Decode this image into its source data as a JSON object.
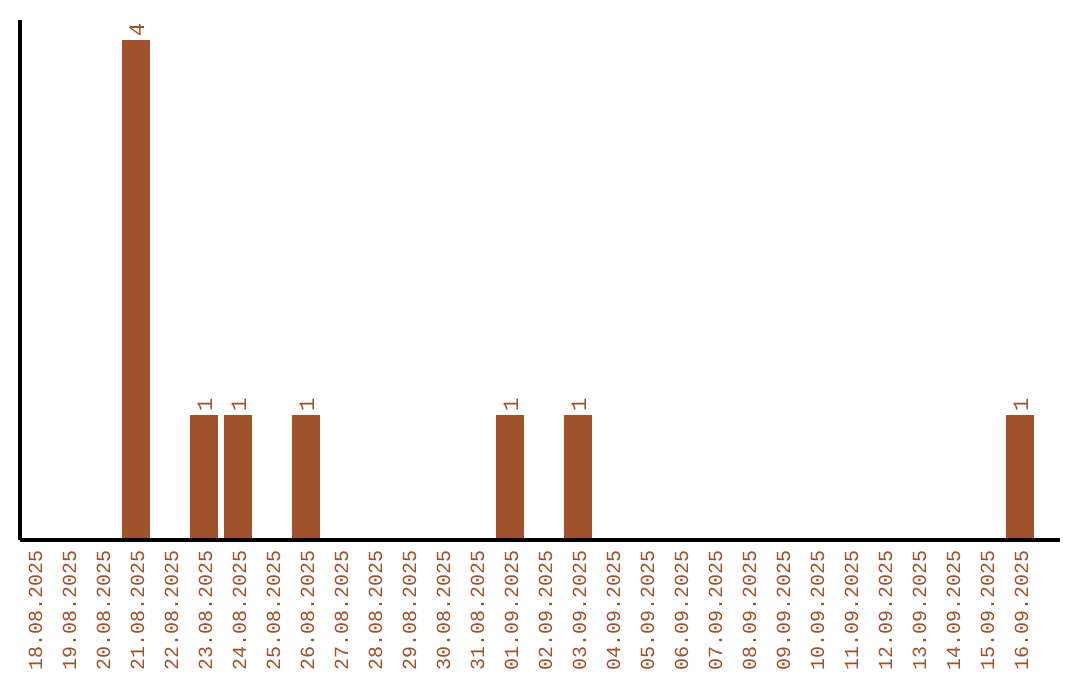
{
  "chart_data": {
    "type": "bar",
    "categories": [
      "18.08.2025",
      "19.08.2025",
      "20.08.2025",
      "21.08.2025",
      "22.08.2025",
      "23.08.2025",
      "24.08.2025",
      "25.08.2025",
      "26.08.2025",
      "27.08.2025",
      "28.08.2025",
      "29.08.2025",
      "30.08.2025",
      "31.08.2025",
      "01.09.2025",
      "02.09.2025",
      "03.09.2025",
      "04.09.2025",
      "05.09.2025",
      "06.09.2025",
      "07.09.2025",
      "08.09.2025",
      "09.09.2025",
      "10.09.2025",
      "11.09.2025",
      "12.09.2025",
      "13.09.2025",
      "14.09.2025",
      "15.09.2025",
      "16.09.2025"
    ],
    "values": [
      0,
      0,
      0,
      4,
      0,
      1,
      1,
      0,
      1,
      0,
      0,
      0,
      0,
      0,
      1,
      0,
      1,
      0,
      0,
      0,
      0,
      0,
      0,
      0,
      0,
      0,
      0,
      0,
      0,
      1
    ],
    "value_labels": [
      null,
      null,
      null,
      "4",
      null,
      "1",
      "1",
      null,
      "1",
      null,
      null,
      null,
      null,
      null,
      "1",
      null,
      "1",
      null,
      null,
      null,
      null,
      null,
      null,
      null,
      null,
      null,
      null,
      null,
      null,
      "1"
    ],
    "color": "#a0522d"
  }
}
